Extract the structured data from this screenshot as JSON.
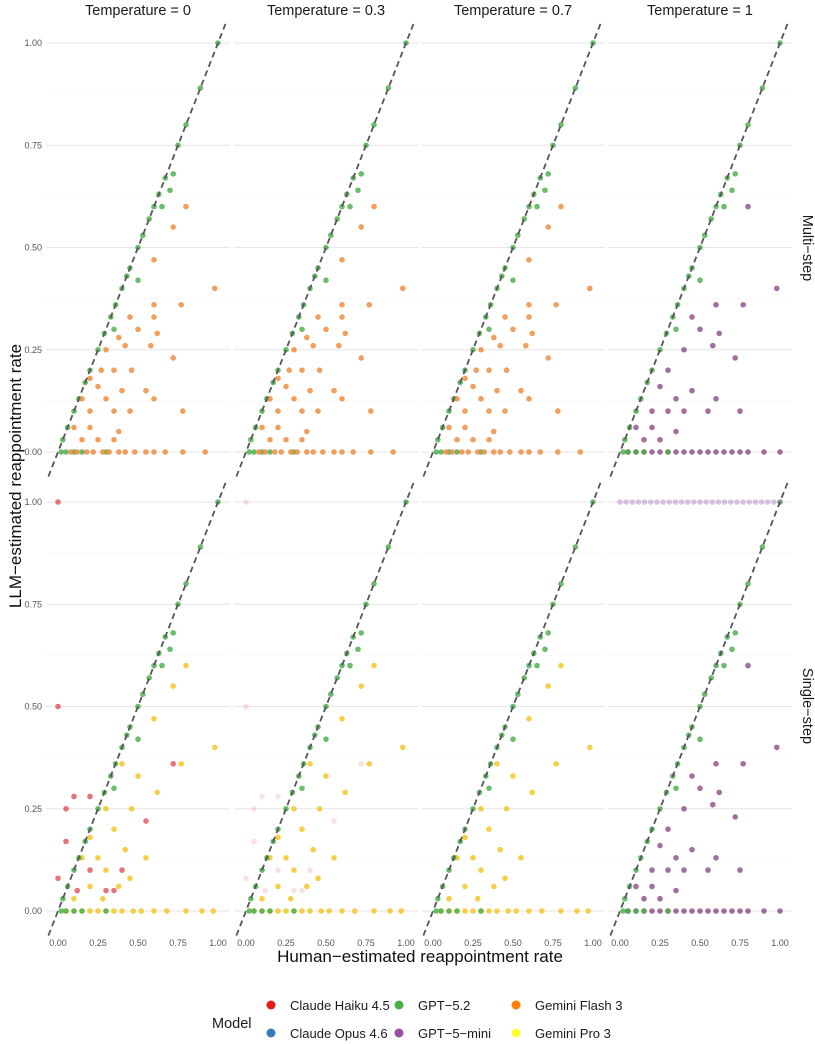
{
  "chart_data": {
    "type": "scatter",
    "facet_cols": [
      "Temperature = 0",
      "Temperature = 0.3",
      "Temperature = 0.7",
      "Temperature = 1"
    ],
    "facet_rows": [
      "Multi−step",
      "Single−step"
    ],
    "xlabel": "Human−estimated reappointment rate",
    "ylabel": "LLM−estimated reappointment rate",
    "xlim": [
      0,
      1
    ],
    "ylim": [
      0,
      1
    ],
    "x_ticks": [
      "0.00",
      "0.25",
      "0.50",
      "0.75",
      "1.00"
    ],
    "y_ticks": [
      "0.00",
      "0.25",
      "0.50",
      "0.75",
      "1.00"
    ],
    "reference_line": "y = x (dashed)",
    "grid": true,
    "legend_position": "bottom",
    "legend": {
      "title": "Model",
      "items": [
        {
          "name": "Claude Haiku 4.5",
          "color": "#e41a1c"
        },
        {
          "name": "Claude Opus 4.6",
          "color": "#377eb8"
        },
        {
          "name": "GPT−5.2",
          "color": "#4daf4a"
        },
        {
          "name": "GPT−5−mini",
          "color": "#984ea3"
        },
        {
          "name": "Gemini Flash 3",
          "color": "#ff7f00"
        },
        {
          "name": "Gemini Pro 3",
          "color": "#ffff33"
        }
      ]
    },
    "series": [
      {
        "name": "GPT−5.2",
        "color": "#4daf4a",
        "note": "all panels; points lie on y = x",
        "points": [
          [
            0.03,
            0.03
          ],
          [
            0.06,
            0.06
          ],
          [
            0.1,
            0.1
          ],
          [
            0.13,
            0.13
          ],
          [
            0.17,
            0.17
          ],
          [
            0.2,
            0.2
          ],
          [
            0.25,
            0.25
          ],
          [
            0.29,
            0.29
          ],
          [
            0.33,
            0.33
          ],
          [
            0.36,
            0.36
          ],
          [
            0.4,
            0.4
          ],
          [
            0.43,
            0.43
          ],
          [
            0.45,
            0.45
          ],
          [
            0.5,
            0.5
          ],
          [
            0.53,
            0.53
          ],
          [
            0.57,
            0.57
          ],
          [
            0.6,
            0.6
          ],
          [
            0.63,
            0.63
          ],
          [
            0.67,
            0.67
          ],
          [
            0.75,
            0.75
          ],
          [
            0.8,
            0.8
          ],
          [
            0.89,
            0.89
          ],
          [
            1.0,
            1.0
          ],
          [
            0.72,
            0.68
          ],
          [
            0.7,
            0.64
          ],
          [
            0.65,
            0.6
          ],
          [
            0.35,
            0.3
          ],
          [
            0.5,
            0.42
          ],
          [
            0.02,
            0.0
          ],
          [
            0.05,
            0.0
          ],
          [
            0.1,
            0.0
          ],
          [
            0.15,
            0.0
          ],
          [
            0.3,
            0.0
          ]
        ]
      },
      {
        "name": "Gemini Flash 3",
        "color": "#ff7f00",
        "note": "Temperature 0, 0.3, 0.7 / Multi-step",
        "points": [
          [
            0.8,
            0.6
          ],
          [
            0.72,
            0.55
          ],
          [
            0.6,
            0.47
          ],
          [
            0.98,
            0.4
          ],
          [
            0.77,
            0.36
          ],
          [
            0.6,
            0.36
          ],
          [
            0.5,
            0.3
          ],
          [
            0.45,
            0.33
          ],
          [
            0.6,
            0.33
          ],
          [
            0.62,
            0.29
          ],
          [
            0.38,
            0.28
          ],
          [
            0.42,
            0.26
          ],
          [
            0.58,
            0.26
          ],
          [
            0.3,
            0.25
          ],
          [
            0.35,
            0.2
          ],
          [
            0.46,
            0.2
          ],
          [
            0.72,
            0.23
          ],
          [
            0.2,
            0.18
          ],
          [
            0.25,
            0.16
          ],
          [
            0.27,
            0.2
          ],
          [
            0.4,
            0.15
          ],
          [
            0.6,
            0.13
          ],
          [
            0.15,
            0.13
          ],
          [
            0.3,
            0.13
          ],
          [
            0.55,
            0.15
          ],
          [
            0.2,
            0.1
          ],
          [
            0.35,
            0.1
          ],
          [
            0.45,
            0.1
          ],
          [
            0.78,
            0.1
          ],
          [
            0.1,
            0.06
          ],
          [
            0.2,
            0.06
          ],
          [
            0.38,
            0.05
          ],
          [
            0.25,
            0.03
          ],
          [
            0.35,
            0.03
          ],
          [
            0.15,
            0.03
          ],
          [
            0.08,
            0.0
          ],
          [
            0.12,
            0.0
          ],
          [
            0.18,
            0.0
          ],
          [
            0.22,
            0.0
          ],
          [
            0.28,
            0.0
          ],
          [
            0.32,
            0.0
          ],
          [
            0.38,
            0.0
          ],
          [
            0.42,
            0.0
          ],
          [
            0.48,
            0.0
          ],
          [
            0.55,
            0.0
          ],
          [
            0.6,
            0.0
          ],
          [
            0.67,
            0.0
          ],
          [
            0.78,
            0.0
          ],
          [
            0.92,
            0.0
          ]
        ]
      },
      {
        "name": "Gemini Pro 3",
        "color": "#ffff33",
        "note": "Single-step",
        "points": [
          [
            0.8,
            0.6
          ],
          [
            0.72,
            0.55
          ],
          [
            0.6,
            0.47
          ],
          [
            0.98,
            0.4
          ],
          [
            0.77,
            0.36
          ],
          [
            0.4,
            0.36
          ],
          [
            0.5,
            0.33
          ],
          [
            0.62,
            0.29
          ],
          [
            0.3,
            0.25
          ],
          [
            0.46,
            0.25
          ],
          [
            0.35,
            0.2
          ],
          [
            0.2,
            0.18
          ],
          [
            0.25,
            0.13
          ],
          [
            0.15,
            0.13
          ],
          [
            0.42,
            0.15
          ],
          [
            0.55,
            0.13
          ],
          [
            0.3,
            0.1
          ],
          [
            0.2,
            0.06
          ],
          [
            0.38,
            0.06
          ],
          [
            0.45,
            0.08
          ],
          [
            0.28,
            0.03
          ],
          [
            0.1,
            0.03
          ],
          [
            0.05,
            0.0
          ],
          [
            0.1,
            0.0
          ],
          [
            0.15,
            0.0
          ],
          [
            0.2,
            0.0
          ],
          [
            0.25,
            0.0
          ],
          [
            0.3,
            0.0
          ],
          [
            0.35,
            0.0
          ],
          [
            0.4,
            0.0
          ],
          [
            0.47,
            0.0
          ],
          [
            0.52,
            0.0
          ],
          [
            0.6,
            0.0
          ],
          [
            0.68,
            0.0
          ],
          [
            0.8,
            0.0
          ],
          [
            0.9,
            0.0
          ],
          [
            0.97,
            0.0
          ]
        ]
      },
      {
        "name": "Claude Haiku 4.5",
        "color": "#e41a1c",
        "note": "Single-step; faint at Temperature 0.3",
        "points": [
          [
            0.72,
            0.36
          ],
          [
            0.55,
            0.22
          ],
          [
            0.4,
            0.1
          ],
          [
            0.2,
            0.1
          ],
          [
            0.35,
            0.05
          ],
          [
            0.12,
            0.05
          ],
          [
            0.05,
            0.25
          ],
          [
            0.1,
            0.28
          ],
          [
            0.2,
            0.28
          ],
          [
            0.0,
            0.5
          ],
          [
            0.0,
            1.0
          ],
          [
            0.0,
            0.08
          ],
          [
            0.05,
            0.17
          ],
          [
            0.3,
            0.05
          ]
        ]
      },
      {
        "name": "GPT−5−mini",
        "color": "#984ea3",
        "note": "Temperature 1; includes a band at y = 1.00 in Single-step row",
        "points": [
          [
            0.98,
            0.4
          ],
          [
            0.8,
            0.6
          ],
          [
            0.77,
            0.36
          ],
          [
            0.6,
            0.36
          ],
          [
            0.62,
            0.29
          ],
          [
            0.5,
            0.3
          ],
          [
            0.45,
            0.33
          ],
          [
            0.4,
            0.25
          ],
          [
            0.58,
            0.26
          ],
          [
            0.72,
            0.23
          ],
          [
            0.3,
            0.2
          ],
          [
            0.25,
            0.16
          ],
          [
            0.35,
            0.13
          ],
          [
            0.45,
            0.15
          ],
          [
            0.6,
            0.13
          ],
          [
            0.2,
            0.1
          ],
          [
            0.3,
            0.1
          ],
          [
            0.4,
            0.1
          ],
          [
            0.55,
            0.1
          ],
          [
            0.75,
            0.1
          ],
          [
            0.1,
            0.06
          ],
          [
            0.2,
            0.06
          ],
          [
            0.35,
            0.05
          ],
          [
            0.15,
            0.03
          ],
          [
            0.25,
            0.03
          ],
          [
            0.05,
            0.0
          ],
          [
            0.1,
            0.0
          ],
          [
            0.15,
            0.0
          ],
          [
            0.2,
            0.0
          ],
          [
            0.25,
            0.0
          ],
          [
            0.3,
            0.0
          ],
          [
            0.35,
            0.0
          ],
          [
            0.4,
            0.0
          ],
          [
            0.45,
            0.0
          ],
          [
            0.5,
            0.0
          ],
          [
            0.55,
            0.0
          ],
          [
            0.6,
            0.0
          ],
          [
            0.65,
            0.0
          ],
          [
            0.7,
            0.0
          ],
          [
            0.75,
            0.0
          ],
          [
            0.8,
            0.0
          ],
          [
            0.9,
            0.0
          ],
          [
            1.0,
            0.0
          ]
        ]
      }
    ]
  }
}
